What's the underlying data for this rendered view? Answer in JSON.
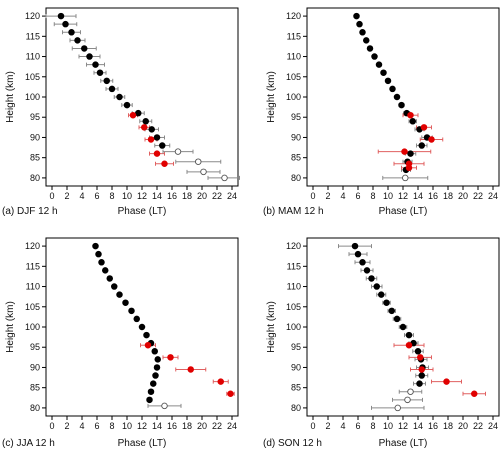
{
  "colors": {
    "black": "#000000",
    "red": "#e00000",
    "open_fill": "#ffffff",
    "open_stroke": "#555555",
    "error_bar": "#8a8a8a",
    "error_bar_red": "#e06060"
  },
  "chart_data": [
    {
      "type": "scatter",
      "panel_label": "(a)  DJF 12 h",
      "xlabel": "Phase (LT)",
      "ylabel": "Height (km)",
      "xlim": [
        0,
        24
      ],
      "ylim": [
        78,
        122
      ],
      "xticks": [
        0,
        2,
        4,
        6,
        8,
        10,
        12,
        14,
        16,
        18,
        20,
        22,
        24
      ],
      "yticks": [
        80,
        85,
        90,
        95,
        100,
        105,
        110,
        115,
        120
      ],
      "grid": false,
      "series": [
        {
          "marker": "black",
          "points": [
            {
              "y": 120,
              "x": 1.2,
              "err": 2.0
            },
            {
              "y": 118,
              "x": 1.8,
              "err": 1.5
            },
            {
              "y": 116,
              "x": 2.6,
              "err": 1.2
            },
            {
              "y": 114,
              "x": 3.4,
              "err": 1.0
            },
            {
              "y": 112,
              "x": 4.3,
              "err": 1.6
            },
            {
              "y": 110,
              "x": 5.0,
              "err": 1.4
            },
            {
              "y": 108,
              "x": 5.8,
              "err": 1.2
            },
            {
              "y": 106,
              "x": 6.4,
              "err": 0.8
            },
            {
              "y": 104,
              "x": 7.3,
              "err": 0.8
            },
            {
              "y": 102,
              "x": 8.0,
              "err": 0.8
            },
            {
              "y": 100,
              "x": 9.0,
              "err": 0.7
            },
            {
              "y": 98,
              "x": 10.0,
              "err": 0.7
            },
            {
              "y": 96,
              "x": 11.5,
              "err": 0.8
            },
            {
              "y": 94,
              "x": 12.5,
              "err": 0.8
            },
            {
              "y": 92,
              "x": 13.3,
              "err": 0.9
            },
            {
              "y": 90,
              "x": 14.0,
              "err": 1.0
            },
            {
              "y": 88,
              "x": 14.7,
              "err": 1.0
            }
          ]
        },
        {
          "marker": "red",
          "points": [
            {
              "y": 95.5,
              "x": 10.8,
              "err": 0.6
            },
            {
              "y": 92.5,
              "x": 12.3,
              "err": 0.7
            },
            {
              "y": 89.5,
              "x": 13.2,
              "err": 0.8
            },
            {
              "y": 86.0,
              "x": 14.0,
              "err": 1.0
            },
            {
              "y": 83.5,
              "x": 15.0,
              "err": 1.2
            }
          ]
        },
        {
          "marker": "open",
          "points": [
            {
              "y": 86.5,
              "x": 16.8,
              "err": 2.0
            },
            {
              "y": 84.0,
              "x": 19.5,
              "err": 3.0
            },
            {
              "y": 81.5,
              "x": 20.2,
              "err": 2.2
            },
            {
              "y": 80.0,
              "x": 23.0,
              "err": 2.2
            }
          ]
        }
      ]
    },
    {
      "type": "scatter",
      "panel_label": "(b)  MAM 12 h",
      "xlabel": "Phase (LT)",
      "ylabel": "Height (km)",
      "xlim": [
        0,
        24
      ],
      "ylim": [
        78,
        122
      ],
      "xticks": [
        0,
        2,
        4,
        6,
        8,
        10,
        12,
        14,
        16,
        18,
        20,
        22,
        24
      ],
      "yticks": [
        80,
        85,
        90,
        95,
        100,
        105,
        110,
        115,
        120
      ],
      "grid": false,
      "series": [
        {
          "marker": "black",
          "points": [
            {
              "y": 120,
              "x": 5.8,
              "err": 0.2
            },
            {
              "y": 118,
              "x": 6.2,
              "err": 0.2
            },
            {
              "y": 116,
              "x": 6.6,
              "err": 0.2
            },
            {
              "y": 114,
              "x": 7.1,
              "err": 0.2
            },
            {
              "y": 112,
              "x": 7.6,
              "err": 0.2
            },
            {
              "y": 110,
              "x": 8.2,
              "err": 0.2
            },
            {
              "y": 108,
              "x": 8.8,
              "err": 0.2
            },
            {
              "y": 106,
              "x": 9.4,
              "err": 0.2
            },
            {
              "y": 104,
              "x": 10.0,
              "err": 0.2
            },
            {
              "y": 102,
              "x": 10.6,
              "err": 0.2
            },
            {
              "y": 100,
              "x": 11.2,
              "err": 0.3
            },
            {
              "y": 98,
              "x": 11.8,
              "err": 0.3
            },
            {
              "y": 96,
              "x": 12.5,
              "err": 0.4
            },
            {
              "y": 94,
              "x": 13.3,
              "err": 0.5
            },
            {
              "y": 92,
              "x": 14.2,
              "err": 0.6
            },
            {
              "y": 90,
              "x": 15.2,
              "err": 0.7
            },
            {
              "y": 88,
              "x": 14.5,
              "err": 0.7
            },
            {
              "y": 86,
              "x": 13.0,
              "err": 0.7
            },
            {
              "y": 84,
              "x": 12.6,
              "err": 0.6
            },
            {
              "y": 82,
              "x": 12.4,
              "err": 0.6
            }
          ]
        },
        {
          "marker": "red",
          "points": [
            {
              "y": 95.5,
              "x": 13.0,
              "err": 1.0
            },
            {
              "y": 92.5,
              "x": 14.8,
              "err": 1.0
            },
            {
              "y": 89.5,
              "x": 15.8,
              "err": 1.5
            },
            {
              "y": 86.5,
              "x": 12.2,
              "err": 3.5
            },
            {
              "y": 83.5,
              "x": 12.8,
              "err": 2.0
            },
            {
              "y": 82.5,
              "x": 12.8,
              "err": 1.0
            }
          ]
        },
        {
          "marker": "open",
          "points": [
            {
              "y": 80.0,
              "x": 12.3,
              "err": 3.0
            }
          ]
        }
      ]
    },
    {
      "type": "scatter",
      "panel_label": "(c)  JJA 12 h",
      "xlabel": "Phase (LT)",
      "ylabel": "Height (km)",
      "xlim": [
        0,
        24
      ],
      "ylim": [
        78,
        122
      ],
      "xticks": [
        0,
        2,
        4,
        6,
        8,
        10,
        12,
        14,
        16,
        18,
        20,
        22,
        24
      ],
      "yticks": [
        80,
        85,
        90,
        95,
        100,
        105,
        110,
        115,
        120
      ],
      "grid": false,
      "series": [
        {
          "marker": "black",
          "points": [
            {
              "y": 120,
              "x": 5.8,
              "err": 0.2
            },
            {
              "y": 118,
              "x": 6.2,
              "err": 0.2
            },
            {
              "y": 116,
              "x": 6.6,
              "err": 0.2
            },
            {
              "y": 114,
              "x": 7.1,
              "err": 0.2
            },
            {
              "y": 112,
              "x": 7.7,
              "err": 0.2
            },
            {
              "y": 110,
              "x": 8.3,
              "err": 0.2
            },
            {
              "y": 108,
              "x": 9.0,
              "err": 0.2
            },
            {
              "y": 106,
              "x": 9.8,
              "err": 0.2
            },
            {
              "y": 104,
              "x": 10.6,
              "err": 0.2
            },
            {
              "y": 102,
              "x": 11.3,
              "err": 0.2
            },
            {
              "y": 100,
              "x": 12.0,
              "err": 0.2
            },
            {
              "y": 98,
              "x": 12.6,
              "err": 0.2
            },
            {
              "y": 96,
              "x": 13.2,
              "err": 0.2
            },
            {
              "y": 94,
              "x": 13.7,
              "err": 0.3
            },
            {
              "y": 92,
              "x": 14.1,
              "err": 0.3
            },
            {
              "y": 90,
              "x": 14.0,
              "err": 0.3
            },
            {
              "y": 88,
              "x": 13.8,
              "err": 0.3
            },
            {
              "y": 86,
              "x": 13.5,
              "err": 0.3
            },
            {
              "y": 84,
              "x": 13.2,
              "err": 0.3
            },
            {
              "y": 82,
              "x": 13.0,
              "err": 0.3
            }
          ]
        },
        {
          "marker": "red",
          "points": [
            {
              "y": 95.5,
              "x": 12.8,
              "err": 1.0
            },
            {
              "y": 92.5,
              "x": 15.8,
              "err": 1.0
            },
            {
              "y": 89.5,
              "x": 18.5,
              "err": 2.0
            },
            {
              "y": 86.5,
              "x": 22.5,
              "err": 1.0
            },
            {
              "y": 83.5,
              "x": 23.8,
              "err": 0.5
            }
          ]
        },
        {
          "marker": "open",
          "points": [
            {
              "y": 80.5,
              "x": 15.0,
              "err": 2.2
            }
          ]
        }
      ]
    },
    {
      "type": "scatter",
      "panel_label": "(d)  SON 12 h",
      "xlabel": "Phase (LT)",
      "ylabel": "Height (km)",
      "xlim": [
        0,
        24
      ],
      "ylim": [
        78,
        122
      ],
      "xticks": [
        0,
        2,
        4,
        6,
        8,
        10,
        12,
        14,
        16,
        18,
        20,
        22,
        24
      ],
      "yticks": [
        80,
        85,
        90,
        95,
        100,
        105,
        110,
        115,
        120
      ],
      "grid": false,
      "series": [
        {
          "marker": "black",
          "points": [
            {
              "y": 120,
              "x": 5.6,
              "err": 2.2
            },
            {
              "y": 118,
              "x": 6.0,
              "err": 1.2
            },
            {
              "y": 116,
              "x": 6.6,
              "err": 1.0
            },
            {
              "y": 114,
              "x": 7.2,
              "err": 0.8
            },
            {
              "y": 112,
              "x": 7.8,
              "err": 0.7
            },
            {
              "y": 110,
              "x": 8.5,
              "err": 0.7
            },
            {
              "y": 108,
              "x": 9.1,
              "err": 0.6
            },
            {
              "y": 106,
              "x": 9.8,
              "err": 0.5
            },
            {
              "y": 104,
              "x": 10.5,
              "err": 0.5
            },
            {
              "y": 102,
              "x": 11.2,
              "err": 0.5
            },
            {
              "y": 100,
              "x": 12.0,
              "err": 0.5
            },
            {
              "y": 98,
              "x": 12.8,
              "err": 0.6
            },
            {
              "y": 96,
              "x": 13.4,
              "err": 0.6
            },
            {
              "y": 94,
              "x": 14.0,
              "err": 0.7
            },
            {
              "y": 92,
              "x": 14.4,
              "err": 0.8
            },
            {
              "y": 90,
              "x": 14.6,
              "err": 0.8
            },
            {
              "y": 88,
              "x": 14.5,
              "err": 0.8
            },
            {
              "y": 86,
              "x": 14.2,
              "err": 0.8
            }
          ]
        },
        {
          "marker": "red",
          "points": [
            {
              "y": 95.5,
              "x": 12.8,
              "err": 2.0
            },
            {
              "y": 92.5,
              "x": 14.3,
              "err": 1.5
            },
            {
              "y": 89.5,
              "x": 14.5,
              "err": 1.5
            },
            {
              "y": 86.5,
              "x": 17.8,
              "err": 2.0
            },
            {
              "y": 83.5,
              "x": 21.5,
              "err": 1.5
            }
          ]
        },
        {
          "marker": "open",
          "points": [
            {
              "y": 84.0,
              "x": 13.0,
              "err": 1.5
            },
            {
              "y": 82.0,
              "x": 12.6,
              "err": 2.0
            },
            {
              "y": 80.0,
              "x": 11.3,
              "err": 3.5
            }
          ]
        }
      ]
    }
  ]
}
